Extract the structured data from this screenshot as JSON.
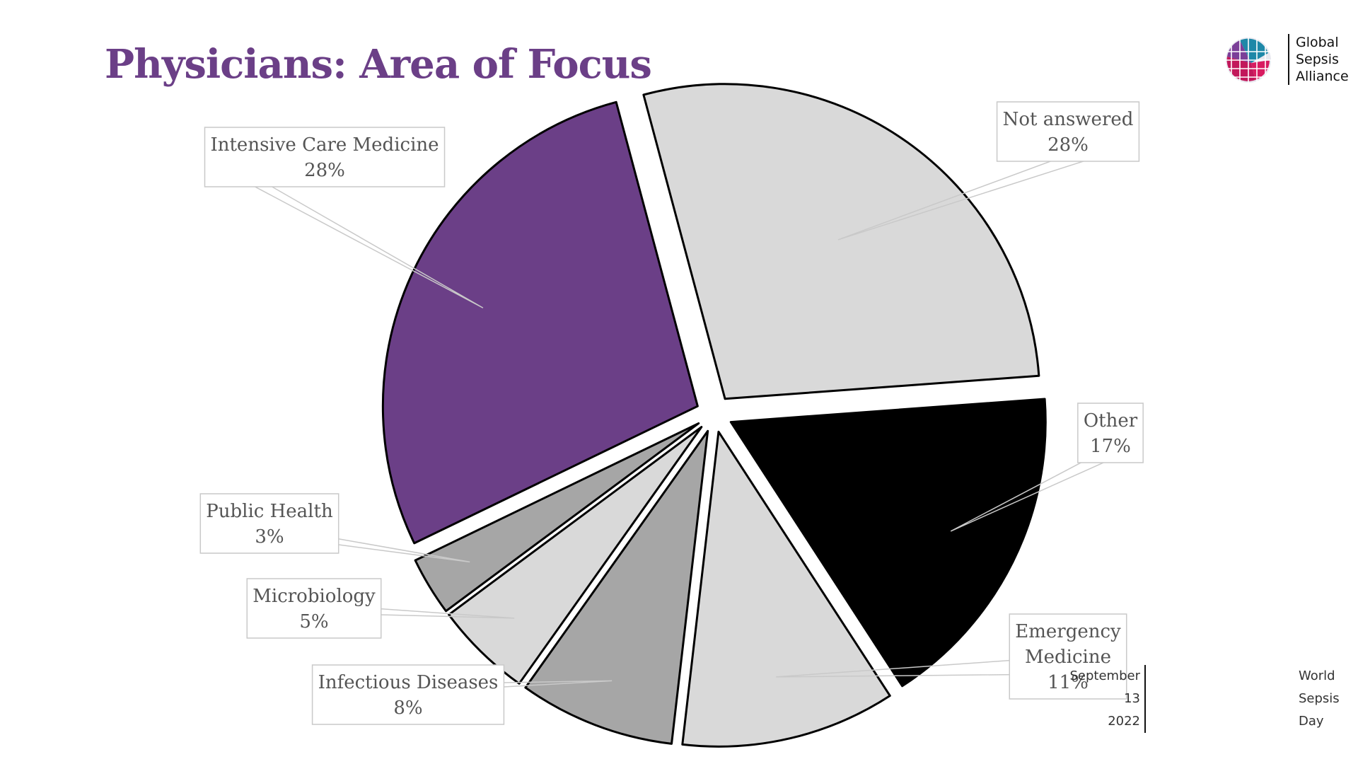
{
  "title": "Physicians: Area of Focus",
  "logo": {
    "lines": [
      "Global",
      "Sepsis",
      "Alliance"
    ]
  },
  "event": {
    "left_lines": [
      "September",
      "13",
      "2022"
    ],
    "right_lines": [
      "World",
      "Sepsis",
      "Day"
    ]
  },
  "colors": {
    "title": "#6b3f87",
    "purple": "#6b3f87",
    "light_gray": "#d9d9d9",
    "mid_gray": "#a6a6a6",
    "black": "#000000"
  },
  "chart_data": {
    "type": "pie",
    "title": "Physicians: Area of Focus",
    "unit": "%",
    "slices": [
      {
        "name": "Not answered",
        "label_lines": [
          "Not answered",
          "28%"
        ],
        "value": 28,
        "color": "#d9d9d9"
      },
      {
        "name": "Other",
        "label_lines": [
          "Other",
          "17%"
        ],
        "value": 17,
        "color": "#000000"
      },
      {
        "name": "Emergency Medicine",
        "label_lines": [
          "Emergency",
          "Medicine",
          "11%"
        ],
        "value": 11,
        "color": "#d9d9d9"
      },
      {
        "name": "Infectious Diseases",
        "label_lines": [
          "Infectious Diseases",
          "8%"
        ],
        "value": 8,
        "color": "#a6a6a6"
      },
      {
        "name": "Microbiology",
        "label_lines": [
          "Microbiology",
          "5%"
        ],
        "value": 5,
        "color": "#d9d9d9"
      },
      {
        "name": "Public Health",
        "label_lines": [
          "Public Health",
          "3%"
        ],
        "value": 3,
        "color": "#a6a6a6"
      },
      {
        "name": "Intensive Care Medicine",
        "label_lines": [
          "Intensive Care Medicine",
          "28%"
        ],
        "value": 28,
        "color": "#6b3f87"
      }
    ]
  }
}
